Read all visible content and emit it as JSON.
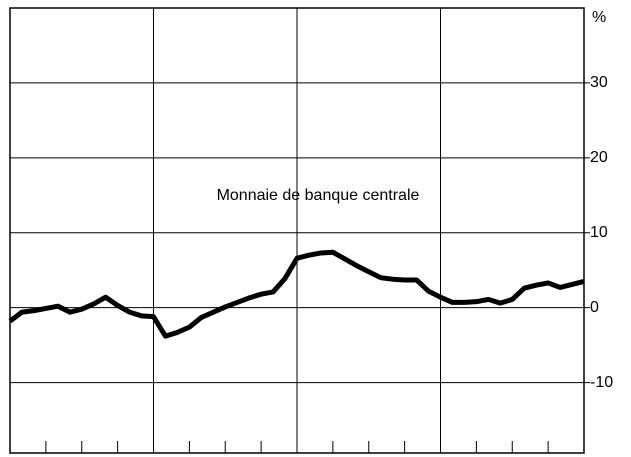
{
  "chart_data": {
    "type": "line",
    "annotation": "Monnaie de banque centrale",
    "y_label": "%",
    "x": [
      0,
      1,
      2,
      3,
      4,
      5,
      6,
      7,
      8,
      9,
      10,
      11,
      12,
      13,
      14,
      15,
      16,
      17,
      18,
      19,
      20,
      21,
      22,
      23,
      24,
      25,
      26,
      27,
      28,
      29,
      30,
      31,
      32,
      33,
      34,
      35,
      36,
      37,
      38,
      39,
      40,
      41,
      42,
      43,
      44,
      45,
      46,
      47,
      48
    ],
    "series": [
      {
        "color": "#000000",
        "values": [
          -1.8,
          -0.6,
          -0.4,
          -0.1,
          0.2,
          -0.6,
          -0.2,
          0.5,
          1.4,
          0.3,
          -0.6,
          -1.1,
          -1.2,
          -3.8,
          -3.3,
          -2.6,
          -1.3,
          -0.6,
          0.1,
          0.7,
          1.3,
          1.8,
          2.1,
          3.9,
          6.6,
          7.0,
          7.3,
          7.4,
          6.5,
          5.6,
          4.8,
          4.0,
          3.8,
          3.7,
          3.7,
          2.2,
          1.4,
          0.7,
          0.7,
          0.8,
          1.1,
          0.6,
          1.1,
          2.6,
          3.0,
          3.3,
          2.7,
          3.1,
          3.5
        ]
      }
    ],
    "xlim": [
      0,
      48
    ],
    "xticks": [
      3,
      6,
      9,
      12,
      15,
      18,
      21,
      24,
      27,
      30,
      33,
      36,
      39,
      42,
      45
    ],
    "xgrid": [
      12,
      24,
      36
    ],
    "ylim": [
      -19.4,
      40
    ],
    "yticks": [
      -10,
      0,
      10,
      20,
      30
    ],
    "grid": true
  }
}
